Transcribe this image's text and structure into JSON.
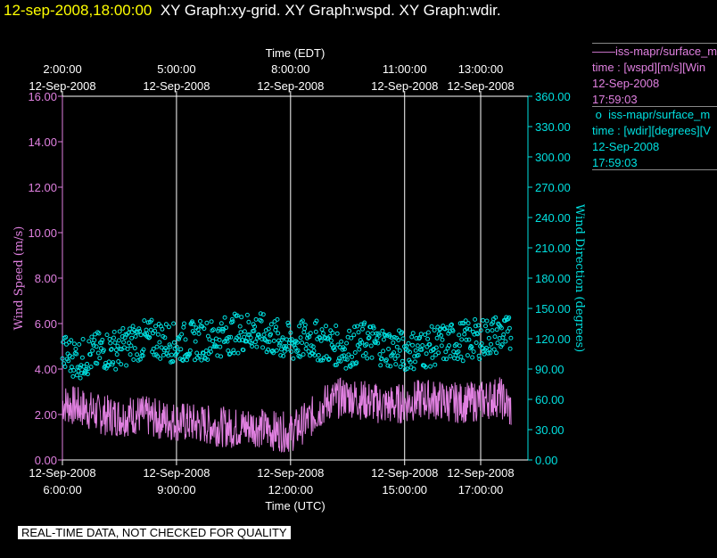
{
  "title": {
    "date": "12-sep-2008,18:00:00",
    "text": "XY Graph:xy-grid.  XY Graph:wspd.  XY Graph:wdir."
  },
  "legend": {
    "wspd": {
      "line1": "iss-mapr/surface_m",
      "line2": "time : [wspd][m/s][Win",
      "line3": "12-Sep-2008",
      "line4": "17:59:03",
      "color": "#e080e0"
    },
    "wdir": {
      "line1": "iss-mapr/surface_m",
      "line2": "time : [wdir][degrees][V",
      "line3": "12-Sep-2008",
      "line4": "17:59:03",
      "color": "#00e0e0"
    }
  },
  "disclaimer": "REAL-TIME DATA, NOT CHECKED FOR QUALITY",
  "chart_data": {
    "type": "line",
    "x_unit": "hours UTC on 12-Sep-2008",
    "xlim": [
      6.0,
      18.0
    ],
    "top_axis": {
      "title": "Time (EDT)",
      "ticks": [
        {
          "time": "2:00:00",
          "date": "12-Sep-2008",
          "x": 6.0
        },
        {
          "time": "5:00:00",
          "date": "12-Sep-2008",
          "x": 9.0
        },
        {
          "time": "8:00:00",
          "date": "12-Sep-2008",
          "x": 12.0
        },
        {
          "time": "11:00:00",
          "date": "12-Sep-2008",
          "x": 15.0
        },
        {
          "time": "13:00:00",
          "date": "12-Sep-2008",
          "x": 17.0
        }
      ]
    },
    "bottom_axis": {
      "title": "Time (UTC)",
      "ticks": [
        {
          "date": "12-Sep-2008",
          "time": "6:00:00",
          "x": 6.0
        },
        {
          "date": "12-Sep-2008",
          "time": "9:00:00",
          "x": 9.0
        },
        {
          "date": "12-Sep-2008",
          "time": "12:00:00",
          "x": 12.0
        },
        {
          "date": "12-Sep-2008",
          "time": "15:00:00",
          "x": 15.0
        },
        {
          "date": "12-Sep-2008",
          "time": "17:00:00",
          "x": 17.0
        }
      ]
    },
    "left_axis": {
      "title": "Wind Speed (m/s)",
      "ylim": [
        0,
        16
      ],
      "ticks": [
        "0.00",
        "2.00",
        "4.00",
        "6.00",
        "8.00",
        "10.00",
        "12.00",
        "14.00",
        "16.00"
      ],
      "color": "#e080e0"
    },
    "right_axis": {
      "title": "Wind Direction (degrees)",
      "ylim": [
        0,
        360
      ],
      "ticks": [
        "0.00",
        "30.00",
        "60.00",
        "90.00",
        "120.00",
        "150.00",
        "180.00",
        "210.00",
        "240.00",
        "270.00",
        "300.00",
        "330.00",
        "360.00"
      ],
      "color": "#00e0e0"
    },
    "series": [
      {
        "name": "iss-mapr/surface_m wspd",
        "type": "line",
        "axis": "left",
        "color": "#e080e0",
        "x": [
          6.0,
          6.5,
          7.0,
          7.5,
          8.0,
          8.5,
          9.0,
          9.5,
          10.0,
          10.5,
          11.0,
          11.5,
          12.0,
          12.5,
          13.0,
          13.5,
          14.0,
          14.5,
          15.0,
          15.5,
          16.0,
          16.5,
          17.0,
          17.5,
          17.8
        ],
        "values": [
          2.5,
          2.3,
          2.0,
          1.9,
          2.0,
          1.8,
          1.7,
          1.6,
          1.5,
          1.4,
          1.5,
          1.3,
          1.2,
          1.8,
          2.6,
          2.8,
          2.6,
          2.4,
          2.5,
          2.7,
          2.6,
          2.5,
          2.6,
          2.8,
          2.2
        ]
      },
      {
        "name": "iss-mapr/surface_m wdir",
        "type": "scatter",
        "axis": "right",
        "color": "#00e0e0",
        "x": [
          6.0,
          6.5,
          7.0,
          7.5,
          8.0,
          8.5,
          9.0,
          9.5,
          10.0,
          10.5,
          11.0,
          11.5,
          12.0,
          12.5,
          13.0,
          13.5,
          14.0,
          14.5,
          15.0,
          15.5,
          16.0,
          16.5,
          17.0,
          17.5,
          17.8
        ],
        "values": [
          105,
          100,
          108,
          110,
          118,
          120,
          115,
          118,
          120,
          125,
          128,
          122,
          115,
          120,
          115,
          110,
          118,
          112,
          108,
          110,
          115,
          118,
          120,
          125,
          122
        ]
      }
    ],
    "grid": "vertical lines at bottom axis ticks"
  }
}
